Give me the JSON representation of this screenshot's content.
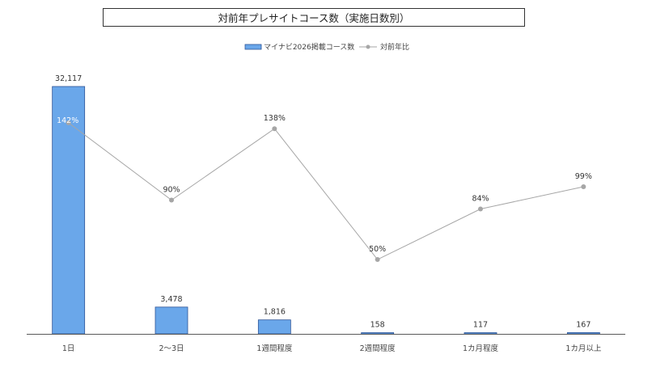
{
  "chart_data": {
    "type": "bar",
    "title": "対前年プレサイトコース数（実施日数別）",
    "categories": [
      "1日",
      "2～3日",
      "1週間程度",
      "2週間程度",
      "1カ月程度",
      "1カ月以上"
    ],
    "series": [
      {
        "name": "マイナビ2026掲載コース数",
        "kind": "bar",
        "values": [
          32117,
          3478,
          1816,
          158,
          117,
          167
        ],
        "labels": [
          "32,117",
          "3,478",
          "1,816",
          "158",
          "117",
          "167"
        ],
        "color": "#6aa7ea",
        "ylim": [
          0,
          32117
        ]
      },
      {
        "name": "対前年比",
        "kind": "line",
        "values": [
          142,
          90,
          138,
          50,
          84,
          99
        ],
        "labels": [
          "142%",
          "90%",
          "138%",
          "50%",
          "84%",
          "99%"
        ],
        "color": "#a6a6a6",
        "ylim": [
          0,
          180
        ]
      }
    ],
    "legend_position": "top-center",
    "grid": false
  }
}
